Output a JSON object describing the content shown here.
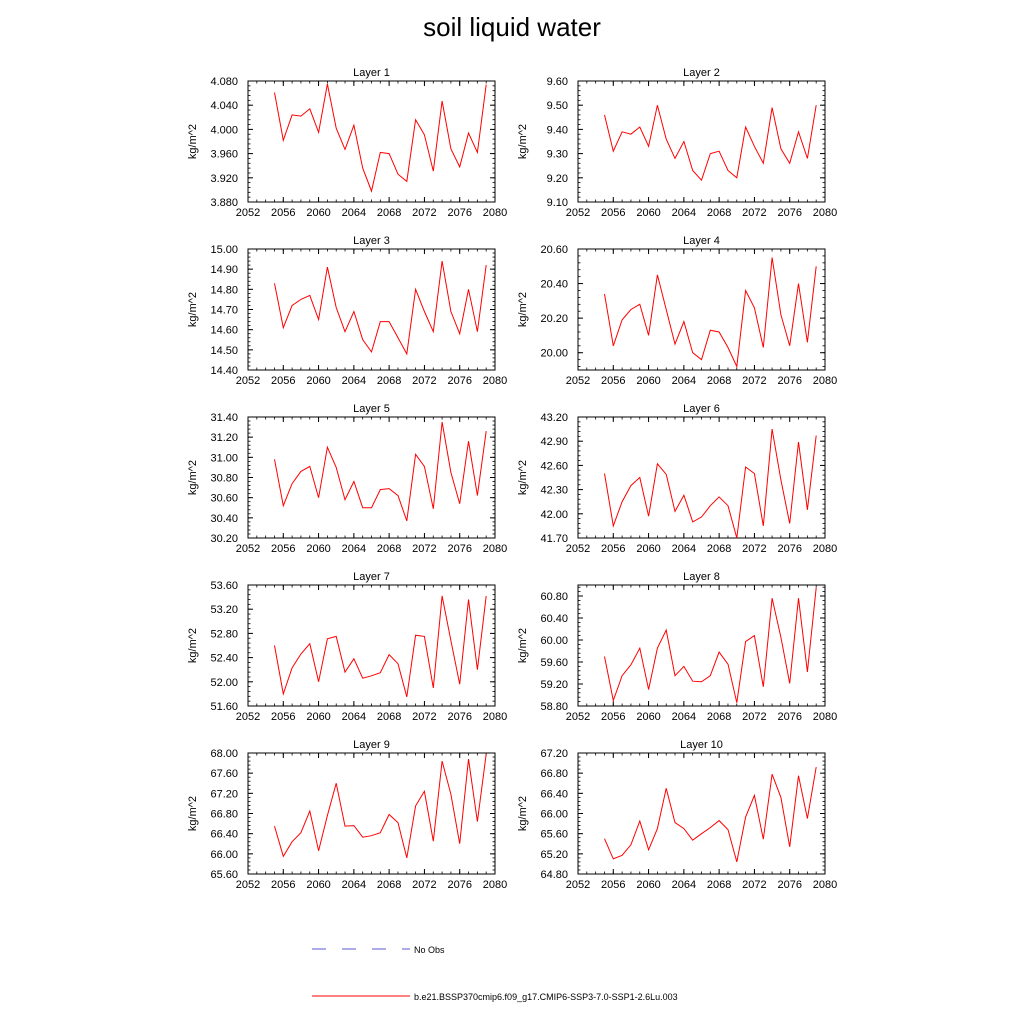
{
  "title": "soil liquid water",
  "chart_data": [
    {
      "type": "line",
      "title": "Layer 1",
      "ylabel": "kg/m^2",
      "xlim": [
        2052,
        2080
      ],
      "ylim": [
        3.88,
        4.08
      ],
      "xticks": [
        "2052",
        "2056",
        "2060",
        "2064",
        "2068",
        "2072",
        "2076",
        "2080"
      ],
      "yticks": [
        "3.880",
        "3.920",
        "3.960",
        "4.000",
        "4.040",
        "4.080"
      ],
      "x": [
        2055,
        2056,
        2057,
        2058,
        2059,
        2060,
        2061,
        2062,
        2063,
        2064,
        2065,
        2066,
        2067,
        2068,
        2069,
        2070,
        2071,
        2072,
        2073,
        2074,
        2075,
        2076,
        2077,
        2078,
        2079
      ],
      "series": [
        {
          "values": [
            4.061,
            3.982,
            4.024,
            4.022,
            4.034,
            3.995,
            4.075,
            4.002,
            3.967,
            4.007,
            3.936,
            3.898,
            3.962,
            3.96,
            3.926,
            3.914,
            4.016,
            3.991,
            3.931,
            4.047,
            3.968,
            3.938,
            3.994,
            3.962,
            4.074
          ]
        }
      ]
    },
    {
      "type": "line",
      "title": "Layer 2",
      "ylabel": "kg/m^2",
      "xlim": [
        2052,
        2080
      ],
      "ylim": [
        9.1,
        9.6
      ],
      "xticks": [
        "2052",
        "2056",
        "2060",
        "2064",
        "2068",
        "2072",
        "2076",
        "2080"
      ],
      "yticks": [
        "9.10",
        "9.20",
        "9.30",
        "9.40",
        "9.50",
        "9.60"
      ],
      "x": [
        2055,
        2056,
        2057,
        2058,
        2059,
        2060,
        2061,
        2062,
        2063,
        2064,
        2065,
        2066,
        2067,
        2068,
        2069,
        2070,
        2071,
        2072,
        2073,
        2074,
        2075,
        2076,
        2077,
        2078,
        2079
      ],
      "series": [
        {
          "values": [
            9.46,
            9.31,
            9.39,
            9.38,
            9.41,
            9.33,
            9.5,
            9.36,
            9.28,
            9.35,
            9.23,
            9.19,
            9.3,
            9.31,
            9.23,
            9.2,
            9.41,
            9.33,
            9.26,
            9.49,
            9.32,
            9.26,
            9.39,
            9.28,
            9.5
          ]
        }
      ]
    },
    {
      "type": "line",
      "title": "Layer 3",
      "ylabel": "kg/m^2",
      "xlim": [
        2052,
        2080
      ],
      "ylim": [
        14.4,
        15.0
      ],
      "xticks": [
        "2052",
        "2056",
        "2060",
        "2064",
        "2068",
        "2072",
        "2076",
        "2080"
      ],
      "yticks": [
        "14.40",
        "14.50",
        "14.60",
        "14.70",
        "14.80",
        "14.90",
        "15.00"
      ],
      "x": [
        2055,
        2056,
        2057,
        2058,
        2059,
        2060,
        2061,
        2062,
        2063,
        2064,
        2065,
        2066,
        2067,
        2068,
        2069,
        2070,
        2071,
        2072,
        2073,
        2074,
        2075,
        2076,
        2077,
        2078,
        2079
      ],
      "series": [
        {
          "values": [
            14.83,
            14.61,
            14.72,
            14.75,
            14.77,
            14.65,
            14.91,
            14.71,
            14.59,
            14.69,
            14.55,
            14.49,
            14.64,
            14.64,
            14.56,
            14.48,
            14.8,
            14.69,
            14.59,
            14.94,
            14.69,
            14.58,
            14.8,
            14.59,
            14.92
          ]
        }
      ]
    },
    {
      "type": "line",
      "title": "Layer 4",
      "ylabel": "kg/m^2",
      "xlim": [
        2052,
        2080
      ],
      "ylim": [
        19.9,
        20.6
      ],
      "xticks": [
        "2052",
        "2056",
        "2060",
        "2064",
        "2068",
        "2072",
        "2076",
        "2080"
      ],
      "yticks": [
        "20.00",
        "20.20",
        "20.40",
        "20.60"
      ],
      "x": [
        2055,
        2056,
        2057,
        2058,
        2059,
        2060,
        2061,
        2062,
        2063,
        2064,
        2065,
        2066,
        2067,
        2068,
        2069,
        2070,
        2071,
        2072,
        2073,
        2074,
        2075,
        2076,
        2077,
        2078,
        2079
      ],
      "series": [
        {
          "values": [
            20.34,
            20.04,
            20.19,
            20.25,
            20.28,
            20.1,
            20.45,
            20.25,
            20.05,
            20.18,
            20.0,
            19.96,
            20.13,
            20.12,
            20.03,
            19.92,
            20.36,
            20.26,
            20.03,
            20.55,
            20.22,
            20.04,
            20.4,
            20.06,
            20.5
          ]
        }
      ]
    },
    {
      "type": "line",
      "title": "Layer 5",
      "ylabel": "kg/m^2",
      "xlim": [
        2052,
        2080
      ],
      "ylim": [
        30.2,
        31.4
      ],
      "xticks": [
        "2052",
        "2056",
        "2060",
        "2064",
        "2068",
        "2072",
        "2076",
        "2080"
      ],
      "yticks": [
        "30.20",
        "30.40",
        "30.60",
        "30.80",
        "31.00",
        "31.20",
        "31.40"
      ],
      "x": [
        2055,
        2056,
        2057,
        2058,
        2059,
        2060,
        2061,
        2062,
        2063,
        2064,
        2065,
        2066,
        2067,
        2068,
        2069,
        2070,
        2071,
        2072,
        2073,
        2074,
        2075,
        2076,
        2077,
        2078,
        2079
      ],
      "series": [
        {
          "values": [
            30.98,
            30.52,
            30.74,
            30.86,
            30.91,
            30.6,
            31.1,
            30.9,
            30.58,
            30.76,
            30.5,
            30.5,
            30.68,
            30.69,
            30.62,
            30.37,
            31.03,
            30.91,
            30.49,
            31.35,
            30.85,
            30.54,
            31.16,
            30.62,
            31.26
          ]
        }
      ]
    },
    {
      "type": "line",
      "title": "Layer 6",
      "ylabel": "kg/m^2",
      "xlim": [
        2052,
        2080
      ],
      "ylim": [
        41.7,
        43.2
      ],
      "xticks": [
        "2052",
        "2056",
        "2060",
        "2064",
        "2068",
        "2072",
        "2076",
        "2080"
      ],
      "yticks": [
        "41.70",
        "42.00",
        "42.30",
        "42.60",
        "42.90",
        "43.20"
      ],
      "x": [
        2055,
        2056,
        2057,
        2058,
        2059,
        2060,
        2061,
        2062,
        2063,
        2064,
        2065,
        2066,
        2067,
        2068,
        2069,
        2070,
        2071,
        2072,
        2073,
        2074,
        2075,
        2076,
        2077,
        2078,
        2079
      ],
      "series": [
        {
          "values": [
            42.5,
            41.85,
            42.15,
            42.35,
            42.45,
            41.97,
            42.62,
            42.49,
            42.03,
            42.23,
            41.9,
            41.96,
            42.1,
            42.21,
            42.1,
            41.7,
            42.58,
            42.5,
            41.85,
            43.05,
            42.42,
            41.88,
            42.89,
            42.05,
            42.97
          ]
        }
      ]
    },
    {
      "type": "line",
      "title": "Layer 7",
      "ylabel": "kg/m^2",
      "xlim": [
        2052,
        2080
      ],
      "ylim": [
        51.6,
        53.6
      ],
      "xticks": [
        "2052",
        "2056",
        "2060",
        "2064",
        "2068",
        "2072",
        "2076",
        "2080"
      ],
      "yticks": [
        "51.60",
        "52.00",
        "52.40",
        "52.80",
        "53.20",
        "53.60"
      ],
      "x": [
        2055,
        2056,
        2057,
        2058,
        2059,
        2060,
        2061,
        2062,
        2063,
        2064,
        2065,
        2066,
        2067,
        2068,
        2069,
        2070,
        2071,
        2072,
        2073,
        2074,
        2075,
        2076,
        2077,
        2078,
        2079
      ],
      "series": [
        {
          "values": [
            52.6,
            51.8,
            52.23,
            52.46,
            52.63,
            52.0,
            52.71,
            52.75,
            52.16,
            52.38,
            52.06,
            52.1,
            52.15,
            52.45,
            52.3,
            51.75,
            52.77,
            52.75,
            51.9,
            53.42,
            52.68,
            51.96,
            53.36,
            52.2,
            53.42
          ]
        }
      ]
    },
    {
      "type": "line",
      "title": "Layer 8",
      "ylabel": "kg/m^2",
      "xlim": [
        2052,
        2080
      ],
      "ylim": [
        58.8,
        61.0
      ],
      "xticks": [
        "2052",
        "2056",
        "2060",
        "2064",
        "2068",
        "2072",
        "2076",
        "2080"
      ],
      "yticks": [
        "58.80",
        "59.20",
        "59.60",
        "60.00",
        "60.40",
        "60.80"
      ],
      "x": [
        2055,
        2056,
        2057,
        2058,
        2059,
        2060,
        2061,
        2062,
        2063,
        2064,
        2065,
        2066,
        2067,
        2068,
        2069,
        2070,
        2071,
        2072,
        2073,
        2074,
        2075,
        2076,
        2077,
        2078,
        2079
      ],
      "series": [
        {
          "values": [
            59.7,
            58.9,
            59.35,
            59.55,
            59.85,
            59.1,
            59.85,
            60.18,
            59.35,
            59.52,
            59.25,
            59.24,
            59.35,
            59.78,
            59.56,
            58.86,
            59.97,
            60.08,
            59.15,
            60.76,
            60.05,
            59.21,
            60.76,
            59.42,
            60.95
          ]
        }
      ]
    },
    {
      "type": "line",
      "title": "Layer 9",
      "ylabel": "kg/m^2",
      "xlim": [
        2052,
        2080
      ],
      "ylim": [
        65.6,
        68.0
      ],
      "xticks": [
        "2052",
        "2056",
        "2060",
        "2064",
        "2068",
        "2072",
        "2076",
        "2080"
      ],
      "yticks": [
        "65.60",
        "66.00",
        "66.40",
        "66.80",
        "67.20",
        "67.60",
        "68.00"
      ],
      "x": [
        2055,
        2056,
        2057,
        2058,
        2059,
        2060,
        2061,
        2062,
        2063,
        2064,
        2065,
        2066,
        2067,
        2068,
        2069,
        2070,
        2071,
        2072,
        2073,
        2074,
        2075,
        2076,
        2077,
        2078,
        2079
      ],
      "series": [
        {
          "values": [
            66.55,
            65.95,
            66.24,
            66.42,
            66.85,
            66.06,
            66.76,
            67.4,
            66.55,
            66.56,
            66.33,
            66.36,
            66.42,
            66.78,
            66.62,
            65.92,
            66.95,
            67.24,
            66.25,
            67.84,
            67.18,
            66.2,
            67.88,
            66.64,
            67.98
          ]
        }
      ]
    },
    {
      "type": "line",
      "title": "Layer 10",
      "ylabel": "kg/m^2",
      "xlim": [
        2052,
        2080
      ],
      "ylim": [
        64.8,
        67.2
      ],
      "xticks": [
        "2052",
        "2056",
        "2060",
        "2064",
        "2068",
        "2072",
        "2076",
        "2080"
      ],
      "yticks": [
        "64.80",
        "65.20",
        "65.60",
        "66.00",
        "66.40",
        "66.80",
        "67.20"
      ],
      "x": [
        2055,
        2056,
        2057,
        2058,
        2059,
        2060,
        2061,
        2062,
        2063,
        2064,
        2065,
        2066,
        2067,
        2068,
        2069,
        2070,
        2071,
        2072,
        2073,
        2074,
        2075,
        2076,
        2077,
        2078,
        2079
      ],
      "series": [
        {
          "values": [
            65.5,
            65.1,
            65.17,
            65.38,
            65.85,
            65.28,
            65.7,
            66.5,
            65.82,
            65.7,
            65.47,
            65.6,
            65.72,
            65.86,
            65.68,
            65.04,
            65.93,
            66.36,
            65.49,
            66.78,
            66.32,
            65.34,
            66.75,
            65.9,
            66.92
          ]
        }
      ]
    }
  ],
  "legend": {
    "items": [
      {
        "label": "No Obs",
        "color": "#5a5ad2",
        "dashed": true
      },
      {
        "label": "b.e21.BSSP370cmip6.f09_g17.CMIP6-SSP3-7.0-SSP1-2.6Lu.003",
        "color": "#ff0000",
        "dashed": false
      }
    ]
  },
  "colors": {
    "series": "#ff0000",
    "axis": "#000000"
  }
}
